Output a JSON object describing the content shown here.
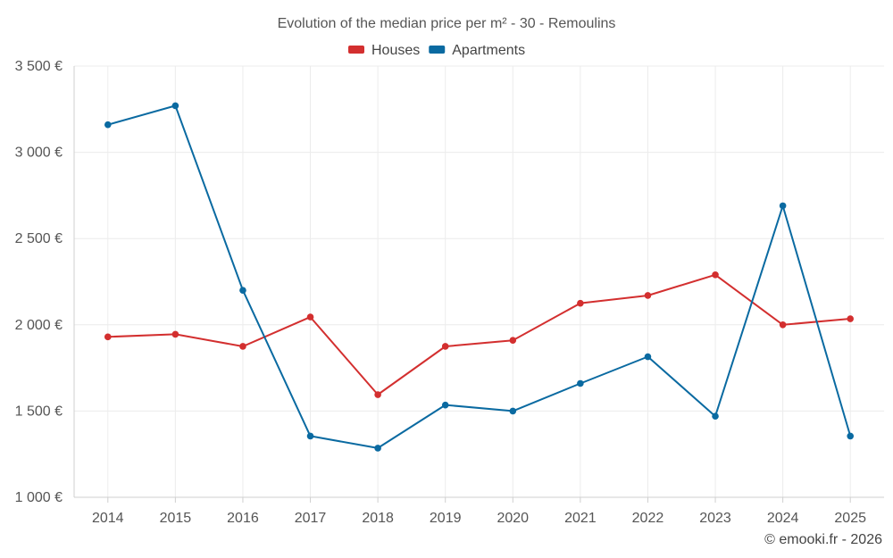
{
  "chart_data": {
    "type": "line",
    "title": "Evolution of the median price per m² - 30 - Remoulins",
    "categories": [
      "2014",
      "2015",
      "2016",
      "2017",
      "2018",
      "2019",
      "2020",
      "2021",
      "2022",
      "2023",
      "2024",
      "2025"
    ],
    "ylim": [
      1000,
      3500
    ],
    "yticks": [
      1000,
      1500,
      2000,
      2500,
      3000,
      3500
    ],
    "ytick_labels": [
      "1 000 €",
      "1 500 €",
      "2 000 €",
      "2 500 €",
      "3 000 €",
      "3 500 €"
    ],
    "grid": true,
    "legend_position": "top-center",
    "series": [
      {
        "name": "Houses",
        "color": "#d32f2f",
        "values": [
          1930,
          1945,
          1875,
          2045,
          1595,
          1875,
          1910,
          2125,
          2170,
          2290,
          2000,
          2035
        ]
      },
      {
        "name": "Apartments",
        "color": "#0a6aa1",
        "values": [
          3160,
          3270,
          2200,
          1355,
          1285,
          1535,
          1500,
          1660,
          1815,
          1470,
          2690,
          1355
        ]
      }
    ],
    "credit": "© emooki.fr - 2026"
  }
}
